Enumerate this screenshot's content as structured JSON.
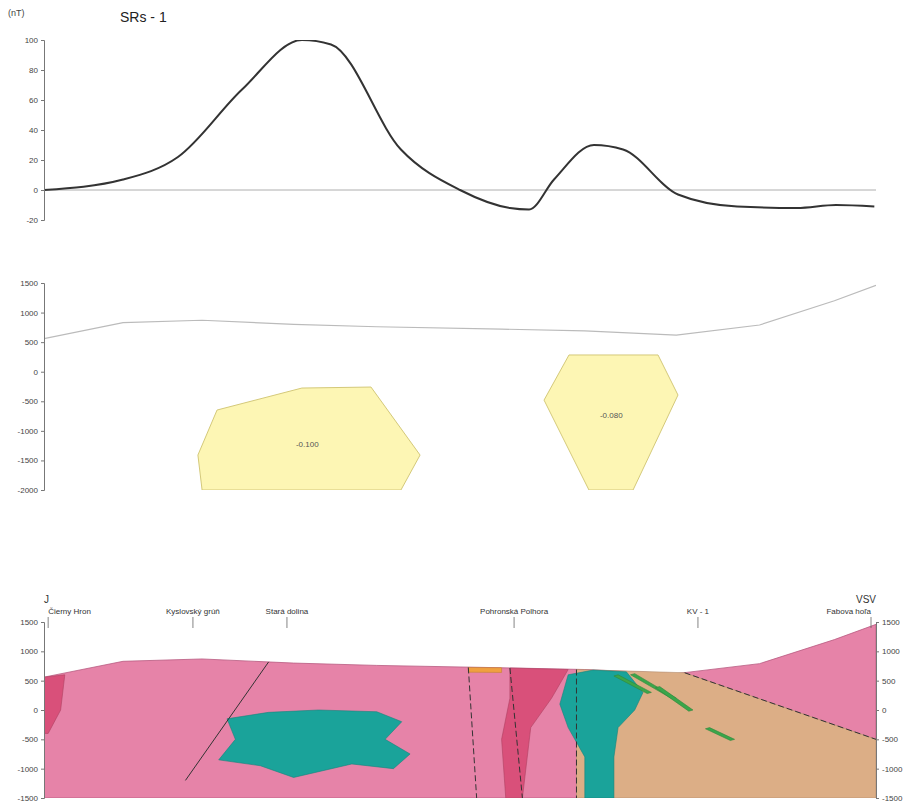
{
  "chart_data": [
    {
      "type": "line",
      "title": "SRs - 1",
      "y_label": "(nT)",
      "x": [
        0,
        9.5,
        16.1,
        23.8,
        31,
        34.5,
        42.9,
        50,
        56,
        58.3,
        61.3,
        66.1,
        69.6,
        76.2,
        83.3,
        90.5,
        95.2,
        99.8
      ],
      "values": [
        0,
        7,
        22,
        67,
        100,
        97,
        27,
        0,
        -12,
        -13,
        7,
        30,
        27,
        -3,
        -11,
        -12,
        -10,
        -11
      ],
      "color": "#333333",
      "baseline": 0,
      "xlim": [
        0,
        100
      ],
      "ylim": [
        -20,
        100
      ],
      "yticks": [
        -20,
        0,
        20,
        40,
        60,
        80,
        100
      ],
      "tick_labels": "y"
    },
    {
      "type": "model",
      "topography": {
        "x": [
          0,
          9.5,
          19,
          30,
          40,
          55,
          65,
          76,
          86,
          95,
          100
        ],
        "values": [
          560,
          830,
          870,
          800,
          760,
          720,
          690,
          620,
          790,
          1200,
          1460
        ],
        "color": "#bbbbbb"
      },
      "bodies": [
        {
          "label": "-0.100",
          "x": [
            20.8,
            31,
            39.3,
            45.2,
            42.9,
            19,
            18.5
          ],
          "y": [
            -648,
            -276,
            -259,
            -1409,
            -2000,
            -2000,
            -1409
          ],
          "color": "#fdf6b4"
        },
        {
          "label": "-0.080",
          "x": [
            63.1,
            73.8,
            76.2,
            70.8,
            65.5,
            60.1
          ],
          "y": [
            283,
            283,
            -394,
            -2000,
            -2000,
            -480
          ],
          "color": "#fdf6b4"
        }
      ],
      "xlim": [
        0,
        100
      ],
      "ylim": [
        -2000,
        1500
      ],
      "yticks": [
        -2000,
        -1500,
        -1000,
        -500,
        0,
        500,
        1000,
        1500
      ],
      "tick_labels": "y"
    },
    {
      "type": "section",
      "direction_labels": [
        "J",
        "VSV"
      ],
      "places": [
        {
          "label": "Čierny Hron",
          "x": 0.5
        },
        {
          "label": "Kyslovský grúň",
          "x": 17.9
        },
        {
          "label": "Stará dolina",
          "x": 29.2
        },
        {
          "label": "Pohronská Polhora",
          "x": 56.5
        },
        {
          "label": "KV - 1",
          "x": 78.6
        },
        {
          "label": "Fabova hoľa",
          "x": 99.4
        }
      ],
      "surface": {
        "x": [
          0,
          9.5,
          19,
          30,
          40,
          55,
          65,
          76,
          86,
          95,
          100
        ],
        "values": [
          560,
          830,
          870,
          800,
          760,
          720,
          690,
          620,
          790,
          1200,
          1460
        ],
        "color": "#e683a8"
      },
      "units": [
        {
          "x": [
            64,
            77,
            100,
            100,
            64
          ],
          "y": [
            690,
            635,
            -500,
            -1500,
            -1500
          ],
          "color": "#dcae86"
        },
        {
          "x": [
            56,
            63,
            61,
            58.5,
            57.5,
            55.5,
            55,
            56
          ],
          "y": [
            715,
            690,
            200,
            -300,
            -1500,
            -1500,
            -500,
            200
          ],
          "color": "#d9507a"
        },
        {
          "x": [
            0,
            2.5,
            2,
            0.5,
            0
          ],
          "y": [
            560,
            600,
            0,
            -400,
            -400
          ],
          "color": "#d9507a"
        },
        {
          "x": [
            51,
            55,
            55,
            51
          ],
          "y": [
            725,
            720,
            640,
            645
          ],
          "color": "#f0a040"
        },
        {
          "x": [
            63,
            66,
            70,
            72,
            71,
            69,
            68.5,
            68.5,
            65,
            65,
            63,
            62
          ],
          "y": [
            600,
            680,
            650,
            300,
            0,
            -300,
            -800,
            -1500,
            -1500,
            -800,
            -300,
            100
          ],
          "color": "#1aa39a"
        },
        {
          "x": [
            22,
            27,
            33,
            40,
            43,
            41,
            44,
            42,
            37,
            30,
            26,
            21,
            23
          ],
          "y": [
            -150,
            -40,
            0,
            -30,
            -200,
            -500,
            -750,
            -1000,
            -920,
            -1150,
            -950,
            -850,
            -500
          ],
          "color": "#1aa39a"
        },
        {
          "x": [
            69,
            73,
            72.5,
            68.5
          ],
          "y": [
            600,
            300,
            280,
            580
          ],
          "color": "#3aa64a"
        },
        {
          "x": [
            71,
            76,
            75.5,
            70.5
          ],
          "y": [
            620,
            200,
            190,
            600
          ],
          "color": "#3aa64a"
        },
        {
          "x": [
            74,
            78,
            77.5,
            73.5
          ],
          "y": [
            400,
            0,
            -20,
            380
          ],
          "color": "#3aa64a"
        },
        {
          "x": [
            80,
            83,
            82.5,
            79.5
          ],
          "y": [
            -300,
            -500,
            -520,
            -320
          ],
          "color": "#3aa64a"
        }
      ],
      "faults": [
        {
          "x": [
            27,
            17
          ],
          "y": [
            820,
            -1200
          ],
          "line_style": "solid"
        },
        {
          "x": [
            51,
            52
          ],
          "y": [
            725,
            -1500
          ],
          "line_style": "dashed"
        },
        {
          "x": [
            56,
            57.5
          ],
          "y": [
            715,
            -1500
          ],
          "line_style": "dashed"
        },
        {
          "x": [
            64,
            64
          ],
          "y": [
            690,
            -1500
          ],
          "line_style": "dashed"
        },
        {
          "x": [
            77,
            100
          ],
          "y": [
            635,
            -500
          ],
          "line_style": "dashed"
        }
      ],
      "xlim": [
        0,
        100
      ],
      "ylim": [
        -1500,
        1500
      ],
      "yticks": [
        -1500,
        -1000,
        -500,
        0,
        500,
        1000,
        1500
      ],
      "tick_labels": "y"
    }
  ]
}
